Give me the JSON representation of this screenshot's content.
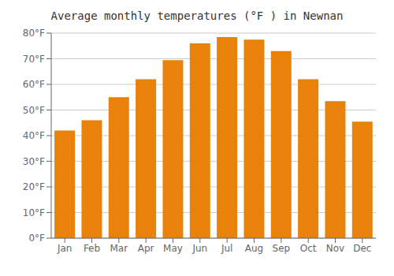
{
  "chart_data": {
    "type": "bar",
    "title": "Average monthly temperatures (°F ) in Newnan",
    "categories": [
      "Jan",
      "Feb",
      "Mar",
      "Apr",
      "May",
      "Jun",
      "Jul",
      "Aug",
      "Sep",
      "Oct",
      "Nov",
      "Dec"
    ],
    "values": [
      42,
      46,
      55,
      62,
      69.5,
      76,
      78.5,
      77.5,
      73,
      62,
      53.5,
      45.5
    ],
    "color": "#E8820A",
    "ylim": [
      0,
      80
    ],
    "yticks": [
      {
        "value": 0,
        "label": "0°F"
      },
      {
        "value": 10,
        "label": "10°F"
      },
      {
        "value": 20,
        "label": "20°F"
      },
      {
        "value": 30,
        "label": "30°F"
      },
      {
        "value": 40,
        "label": "40°F"
      },
      {
        "value": 50,
        "label": "50°F"
      },
      {
        "value": 60,
        "label": "60°F"
      },
      {
        "value": 70,
        "label": "70°F"
      },
      {
        "value": 80,
        "label": "80°F"
      }
    ],
    "grid": true
  }
}
